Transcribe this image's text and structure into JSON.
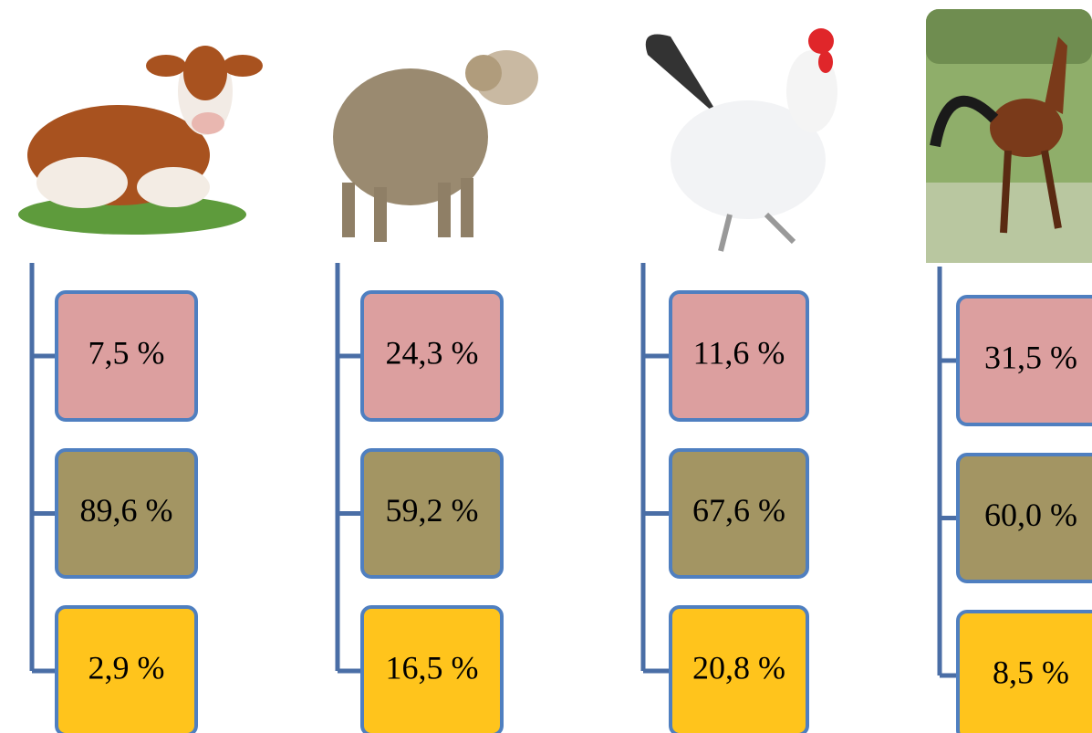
{
  "columns": [
    {
      "boxes": [
        "7,5 %",
        "89,6 %",
        "2,9 %"
      ]
    },
    {
      "boxes": [
        "24,3 %",
        "59,2 %",
        "16,5 %"
      ]
    },
    {
      "boxes": [
        "11,6 %",
        "67,6 %",
        "20,8 %"
      ]
    },
    {
      "boxes": [
        "31,5 %",
        "60,0 %",
        "8,5 %"
      ]
    }
  ]
}
